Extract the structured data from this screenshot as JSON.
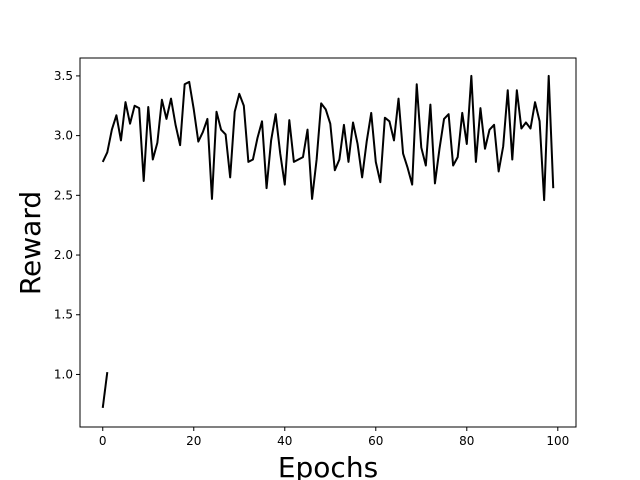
{
  "chart_data": {
    "type": "line",
    "title": "",
    "xlabel": "Epochs",
    "ylabel": "Reward",
    "xlim": [
      -5,
      104
    ],
    "ylim": [
      0.56,
      3.65
    ],
    "grid": false,
    "line_color": "#000000",
    "xticks": [
      0,
      20,
      40,
      60,
      80,
      100
    ],
    "xtick_labels": [
      "0",
      "20",
      "40",
      "60",
      "80",
      "100"
    ],
    "yticks": [
      1.0,
      1.5,
      2.0,
      2.5,
      3.0,
      3.5
    ],
    "ytick_labels": [
      "1.0",
      "1.5",
      "2.0",
      "2.5",
      "3.0",
      "3.5"
    ],
    "series": [
      {
        "segments": [
          {
            "x": [
              0,
              1
            ],
            "y": [
              0.72,
              1.02
            ]
          },
          {
            "x": [
              0,
              1,
              2,
              3,
              4,
              5,
              6,
              7,
              8,
              9,
              10,
              11,
              12,
              13,
              14,
              15,
              16,
              17,
              18,
              19,
              20,
              21,
              22,
              23,
              24,
              25,
              26,
              27,
              28,
              29,
              30,
              31,
              32,
              33,
              34,
              35,
              36,
              37,
              38,
              39,
              40,
              41,
              42,
              43,
              44,
              45,
              46,
              47,
              48,
              49,
              50,
              51,
              52,
              53,
              54,
              55,
              56,
              57,
              58,
              59,
              60,
              61,
              62,
              63,
              64,
              65,
              66,
              67,
              68,
              69,
              70,
              71,
              72,
              73,
              74,
              75,
              76,
              77,
              78,
              79,
              80,
              81,
              82,
              83,
              84,
              85,
              86,
              87,
              88,
              89,
              90,
              91,
              92,
              93,
              94,
              95,
              96,
              97,
              98,
              99
            ],
            "y": [
              2.78,
              2.86,
              3.05,
              3.17,
              2.96,
              3.28,
              3.1,
              3.25,
              3.23,
              2.62,
              3.24,
              2.8,
              2.94,
              3.3,
              3.14,
              3.31,
              3.09,
              2.92,
              3.43,
              3.45,
              3.22,
              2.95,
              3.03,
              3.14,
              2.47,
              3.2,
              3.05,
              3.01,
              2.65,
              3.2,
              3.35,
              3.25,
              2.78,
              2.8,
              2.98,
              3.12,
              2.56,
              2.96,
              3.18,
              2.85,
              2.59,
              3.13,
              2.78,
              2.8,
              2.82,
              3.05,
              2.47,
              2.8,
              3.27,
              3.22,
              3.1,
              2.71,
              2.8,
              3.09,
              2.78,
              3.11,
              2.93,
              2.65,
              2.95,
              3.19,
              2.78,
              2.61,
              3.15,
              3.12,
              2.96,
              3.31,
              2.85,
              2.73,
              2.59,
              3.43,
              2.9,
              2.75,
              3.26,
              2.6,
              2.89,
              3.14,
              3.18,
              2.75,
              2.82,
              3.19,
              2.93,
              3.5,
              2.78,
              3.23,
              2.89,
              3.05,
              3.09,
              2.7,
              2.91,
              3.38,
              2.8,
              3.38,
              3.06,
              3.11,
              3.06,
              3.28,
              3.12,
              2.46,
              3.5,
              2.56
            ]
          }
        ]
      }
    ]
  }
}
